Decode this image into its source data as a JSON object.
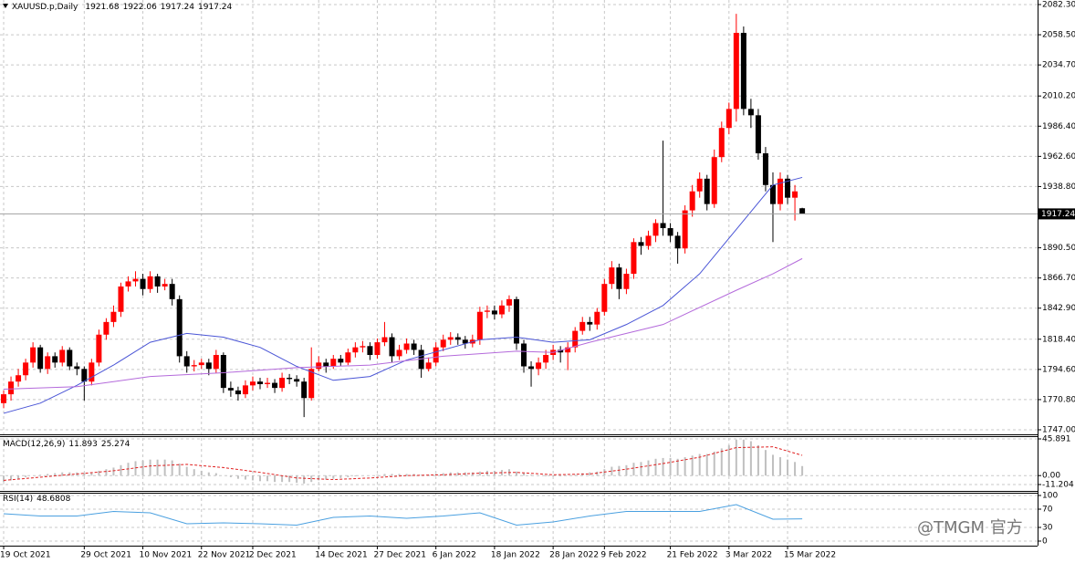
{
  "chart_data": [
    {
      "type": "candlestick",
      "title": "XAUUSD.p,Daily",
      "up_color": "#ff0000",
      "down_color": "#000000",
      "grid": true,
      "xlim": [
        -0.5,
        141
      ],
      "ylim": [
        1747,
        2082.3
      ],
      "yticks": [
        {
          "value": 2082.3,
          "label": "2082.30"
        },
        {
          "value": 2058.5,
          "label": "2058.50"
        },
        {
          "value": 2034.7,
          "label": "2034.70"
        },
        {
          "value": 2010.2,
          "label": "2010.20"
        },
        {
          "value": 1986.4,
          "label": "1986.40"
        },
        {
          "value": 1962.6,
          "label": "1962.60"
        },
        {
          "value": 1938.8,
          "label": "1938.80"
        },
        {
          "value": 1890.5,
          "label": "1890.50"
        },
        {
          "value": 1866.7,
          "label": "1866.70"
        },
        {
          "value": 1842.9,
          "label": "1842.90"
        },
        {
          "value": 1818.4,
          "label": "1818.40"
        },
        {
          "value": 1794.6,
          "label": "1794.60"
        },
        {
          "value": 1770.8,
          "label": "1770.80"
        },
        {
          "value": 1747,
          "label": "1747.00"
        }
      ],
      "xticks": [
        {
          "value": 0,
          "label": "19 Oct 2021"
        },
        {
          "value": 11,
          "label": "29 Oct 2021"
        },
        {
          "value": 19,
          "label": "10 Nov 2021"
        },
        {
          "value": 27,
          "label": "22 Nov 2021"
        },
        {
          "value": 34,
          "label": "2 Dec 2021"
        },
        {
          "value": 43,
          "label": "14 Dec 2021"
        },
        {
          "value": 51,
          "label": "27 Dec 2021"
        },
        {
          "value": 59,
          "label": "6 Jan 2022"
        },
        {
          "value": 67,
          "label": "18 Jan 2022"
        },
        {
          "value": 75,
          "label": "28 Jan 2022"
        },
        {
          "value": 82,
          "label": "9 Feb 2022"
        },
        {
          "value": 91,
          "label": "21 Feb 2022"
        },
        {
          "value": 99,
          "label": "3 Mar 2022"
        },
        {
          "value": 107,
          "label": "15 Mar 2022"
        }
      ],
      "open": [
        1768,
        1775,
        1785,
        1790,
        1800,
        1812,
        1795,
        1805,
        1800,
        1810,
        1797,
        1795,
        1785,
        1800,
        1822,
        1832,
        1840,
        1860,
        1864,
        1866,
        1858,
        1868,
        1860,
        1862,
        1850,
        1805,
        1797,
        1798,
        1800,
        1795,
        1806,
        1780,
        1778,
        1775,
        1782,
        1785,
        1783,
        1784,
        1780,
        1788,
        1787,
        1785,
        1772,
        1795,
        1800,
        1797,
        1803,
        1800,
        1808,
        1812,
        1813,
        1806,
        1816,
        1820,
        1805,
        1810,
        1815,
        1810,
        1795,
        1800,
        1812,
        1818,
        1820,
        1818,
        1815,
        1818,
        1840,
        1841,
        1838,
        1845,
        1850,
        1815,
        1797,
        1795,
        1800,
        1806,
        1810,
        1808,
        1812,
        1825,
        1832,
        1830,
        1840,
        1862,
        1875,
        1858,
        1870,
        1895,
        1892,
        1900,
        1910,
        1906,
        1900,
        1890,
        1920,
        1935,
        1945,
        1925,
        1962,
        1985,
        2000,
        2060,
        2000,
        1995,
        1965,
        1940,
        1925,
        1945,
        1930,
        1921.68
      ],
      "high": [
        1778,
        1789,
        1795,
        1803,
        1816,
        1814,
        1808,
        1808,
        1813,
        1812,
        1800,
        1797,
        1803,
        1826,
        1835,
        1845,
        1863,
        1868,
        1872,
        1870,
        1872,
        1870,
        1866,
        1866,
        1853,
        1809,
        1802,
        1803,
        1803,
        1810,
        1808,
        1785,
        1781,
        1786,
        1789,
        1788,
        1788,
        1787,
        1792,
        1791,
        1790,
        1788,
        1812,
        1805,
        1803,
        1806,
        1806,
        1811,
        1816,
        1817,
        1816,
        1819,
        1832,
        1823,
        1814,
        1819,
        1818,
        1814,
        1804,
        1816,
        1822,
        1824,
        1823,
        1821,
        1822,
        1844,
        1845,
        1845,
        1849,
        1853,
        1852,
        1818,
        1801,
        1804,
        1810,
        1814,
        1813,
        1816,
        1828,
        1836,
        1836,
        1843,
        1866,
        1880,
        1878,
        1874,
        1898,
        1899,
        1904,
        1913,
        1975,
        1910,
        1903,
        1924,
        1940,
        1950,
        1948,
        1968,
        1990,
        2005,
        2075,
        2065,
        2008,
        2000,
        1970,
        1950,
        1950,
        1948,
        1940,
        1922.06
      ],
      "low": [
        1764,
        1770,
        1781,
        1786,
        1796,
        1792,
        1791,
        1796,
        1797,
        1794,
        1790,
        1770,
        1782,
        1797,
        1818,
        1828,
        1836,
        1856,
        1860,
        1853,
        1855,
        1855,
        1857,
        1845,
        1800,
        1792,
        1793,
        1795,
        1790,
        1792,
        1776,
        1773,
        1770,
        1772,
        1778,
        1779,
        1780,
        1776,
        1777,
        1783,
        1781,
        1757,
        1770,
        1793,
        1792,
        1795,
        1797,
        1798,
        1804,
        1808,
        1802,
        1803,
        1813,
        1800,
        1802,
        1807,
        1806,
        1788,
        1793,
        1797,
        1809,
        1814,
        1814,
        1811,
        1812,
        1814,
        1835,
        1834,
        1835,
        1840,
        1810,
        1792,
        1781,
        1790,
        1795,
        1802,
        1800,
        1794,
        1808,
        1822,
        1825,
        1826,
        1837,
        1858,
        1850,
        1854,
        1866,
        1885,
        1889,
        1895,
        1900,
        1895,
        1878,
        1886,
        1915,
        1930,
        1920,
        1922,
        1958,
        1980,
        1990,
        1995,
        1985,
        1960,
        1935,
        1895,
        1920,
        1925,
        1912,
        1917.24
      ],
      "close": [
        1775,
        1785,
        1790,
        1800,
        1812,
        1795,
        1805,
        1800,
        1810,
        1797,
        1795,
        1785,
        1800,
        1822,
        1832,
        1840,
        1860,
        1864,
        1866,
        1858,
        1868,
        1860,
        1862,
        1850,
        1805,
        1797,
        1798,
        1800,
        1795,
        1806,
        1780,
        1778,
        1775,
        1782,
        1785,
        1783,
        1784,
        1780,
        1788,
        1787,
        1785,
        1772,
        1795,
        1800,
        1797,
        1803,
        1800,
        1808,
        1812,
        1813,
        1806,
        1816,
        1820,
        1805,
        1810,
        1815,
        1810,
        1795,
        1800,
        1812,
        1818,
        1820,
        1818,
        1815,
        1818,
        1840,
        1841,
        1838,
        1845,
        1850,
        1815,
        1797,
        1795,
        1800,
        1806,
        1810,
        1808,
        1812,
        1825,
        1832,
        1830,
        1840,
        1862,
        1875,
        1858,
        1870,
        1895,
        1892,
        1900,
        1910,
        1906,
        1900,
        1890,
        1920,
        1935,
        1945,
        1925,
        1962,
        1985,
        2000,
        2060,
        2000,
        1995,
        1965,
        1940,
        1925,
        1945,
        1930,
        1935,
        1917.24
      ],
      "overlays": [
        {
          "color": "#4a55d6",
          "x": [
            0,
            5,
            10,
            15,
            20,
            25,
            30,
            35,
            40,
            45,
            50,
            55,
            60,
            65,
            70,
            75,
            80,
            85,
            90,
            95,
            100,
            105,
            109
          ],
          "values": [
            1760,
            1768,
            1782,
            1798,
            1816,
            1823,
            1820,
            1812,
            1797,
            1786,
            1789,
            1802,
            1810,
            1818,
            1820,
            1816,
            1818,
            1830,
            1845,
            1870,
            1905,
            1940,
            1946
          ]
        },
        {
          "color": "#b46adb",
          "x": [
            0,
            10,
            20,
            30,
            40,
            50,
            60,
            70,
            75,
            80,
            90,
            100,
            105,
            109
          ],
          "values": [
            1779,
            1781,
            1789,
            1792,
            1796,
            1798,
            1805,
            1809,
            1808,
            1816,
            1830,
            1857,
            1870,
            1882
          ]
        }
      ]
    },
    {
      "type": "macd",
      "title": "MACD(12,26,9)",
      "ylim": [
        -11.204,
        45.891
      ],
      "yticks": [
        {
          "value": 45.891
        },
        {
          "value": 0,
          "label": "0.00"
        },
        {
          "value": -11.204
        }
      ],
      "histogram": {
        "color": "#c0c0c0",
        "values": [
          -8,
          -6,
          -4,
          -2,
          0,
          1,
          2,
          3,
          4,
          4,
          4,
          3,
          4,
          6,
          8,
          10,
          13,
          16,
          18,
          19,
          20,
          20,
          20,
          19,
          15,
          11,
          8,
          6,
          4,
          3,
          0,
          -2,
          -4,
          -5,
          -6,
          -7,
          -7,
          -8,
          -8,
          -8,
          -9,
          -10,
          -8,
          -6,
          -5,
          -4,
          -3,
          -2,
          -1,
          0,
          0,
          1,
          2,
          2,
          2,
          2,
          2,
          1,
          1,
          2,
          3,
          4,
          4,
          4,
          4,
          5,
          6,
          6,
          7,
          8,
          5,
          3,
          1,
          0,
          -1,
          -1,
          -1,
          0,
          1,
          3,
          4,
          5,
          8,
          11,
          12,
          13,
          16,
          17,
          19,
          21,
          22,
          22,
          21,
          23,
          25,
          27,
          27,
          30,
          34,
          38,
          45,
          45,
          43,
          38,
          32,
          26,
          23,
          20,
          17,
          11.893
        ]
      },
      "signal": {
        "color": "#e02020",
        "x": [
          0,
          5,
          10,
          15,
          20,
          25,
          30,
          35,
          40,
          45,
          50,
          55,
          60,
          65,
          70,
          75,
          80,
          85,
          90,
          95,
          100,
          105,
          109
        ],
        "values": [
          -6,
          -2,
          2,
          6,
          12,
          14,
          10,
          4,
          -3,
          -5,
          -3,
          0,
          1,
          3,
          4,
          1,
          2,
          8,
          15,
          23,
          35,
          36,
          25.274
        ]
      }
    },
    {
      "type": "line",
      "title": "RSI(14)",
      "color": "#4aa0e0",
      "ylim": [
        0,
        100
      ],
      "yticks": [
        100,
        70,
        30,
        0
      ],
      "x": [
        0,
        5,
        10,
        15,
        20,
        25,
        30,
        35,
        40,
        45,
        50,
        55,
        60,
        65,
        70,
        75,
        80,
        85,
        90,
        95,
        100,
        105,
        109
      ],
      "values": [
        60,
        55,
        55,
        65,
        62,
        38,
        40,
        38,
        35,
        52,
        55,
        50,
        55,
        62,
        35,
        42,
        55,
        65,
        65,
        65,
        80,
        48,
        48.6808
      ]
    }
  ],
  "watermark": "@TMGM 官方"
}
